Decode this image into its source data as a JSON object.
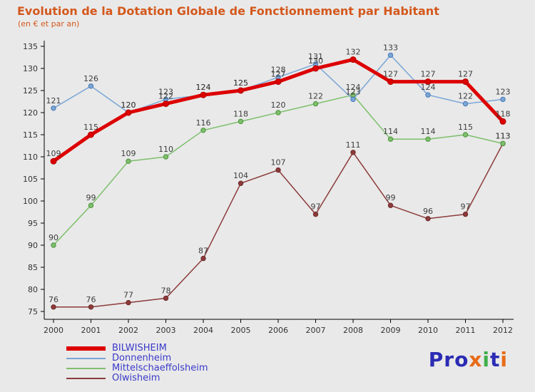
{
  "chart_data": {
    "type": "line",
    "title": "Evolution de la Dotation Globale de Fonctionnement par Habitant",
    "subtitle": "(en € et par an)",
    "x": [
      2000,
      2001,
      2002,
      2003,
      2004,
      2005,
      2006,
      2007,
      2008,
      2009,
      2010,
      2011,
      2012
    ],
    "ylim": [
      75,
      135
    ],
    "ytick_step": 5,
    "grid": false,
    "legend_position": "bottom-left",
    "series": [
      {
        "name": "BILWISHEIM",
        "color": "#dd0000",
        "point_stroke": "#b00000",
        "width": 5,
        "values": [
          109,
          115,
          120,
          122,
          124,
          125,
          127,
          130,
          132,
          127,
          127,
          127,
          118
        ]
      },
      {
        "name": "Donnenheim",
        "color": "#7aa6d6",
        "point_stroke": "#4a7ab5",
        "width": 1.5,
        "values": [
          121,
          126,
          120,
          123,
          124,
          125,
          128,
          131,
          123,
          133,
          124,
          122,
          123
        ]
      },
      {
        "name": "Mittelschaeffolsheim",
        "color": "#7dbf6b",
        "point_stroke": "#4e9440",
        "width": 1.5,
        "values": [
          90,
          99,
          109,
          110,
          116,
          118,
          120,
          122,
          124,
          114,
          114,
          115,
          113
        ]
      },
      {
        "name": "Olwisheim",
        "color": "#8c3b3b",
        "point_stroke": "#6e2a2a",
        "width": 1.5,
        "values": [
          76,
          76,
          77,
          78,
          87,
          104,
          107,
          97,
          111,
          99,
          96,
          97,
          113
        ]
      }
    ],
    "label_color": "#3d3d3d",
    "axis_color": "#000000",
    "tick_label_color": "#333333"
  },
  "legend": {
    "items": [
      "BILWISHEIM",
      "Donnenheim",
      "Mittelschaeffolsheim",
      "Olwisheim"
    ]
  },
  "logo": {
    "parts": [
      {
        "text": "Pro",
        "color": "#2b2bb4"
      },
      {
        "text": "x",
        "color": "#e86b17"
      },
      {
        "text": "i",
        "color": "#3fae49"
      },
      {
        "text": "t",
        "color": "#2b2bb4"
      },
      {
        "text": "i",
        "color": "#e86b17"
      }
    ]
  }
}
